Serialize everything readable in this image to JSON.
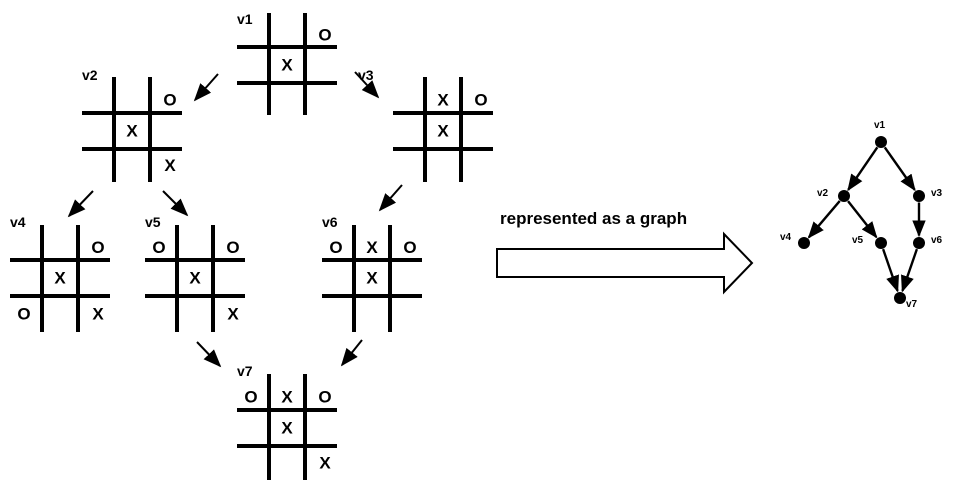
{
  "caption": "represented as a graph",
  "boards": [
    {
      "id": "v1",
      "label": "v1",
      "cells": [
        "",
        "",
        "O",
        "",
        "X",
        "",
        "",
        "",
        ""
      ]
    },
    {
      "id": "v2",
      "label": "v2",
      "cells": [
        "",
        "",
        "O",
        "",
        "X",
        "",
        "",
        "",
        "X"
      ]
    },
    {
      "id": "v3",
      "label": "v3",
      "cells": [
        "",
        "X",
        "O",
        "",
        "X",
        "",
        "",
        "",
        ""
      ]
    },
    {
      "id": "v4",
      "label": "v4",
      "cells": [
        "",
        "",
        "O",
        "",
        "X",
        "",
        "O",
        "",
        "X"
      ]
    },
    {
      "id": "v5",
      "label": "v5",
      "cells": [
        "O",
        "",
        "O",
        "",
        "X",
        "",
        "",
        "",
        "X"
      ]
    },
    {
      "id": "v6",
      "label": "v6",
      "cells": [
        "O",
        "X",
        "O",
        "",
        "X",
        "",
        "",
        "",
        ""
      ]
    },
    {
      "id": "v7",
      "label": "v7",
      "cells": [
        "O",
        "X",
        "O",
        "",
        "X",
        "",
        "",
        "",
        "X"
      ]
    }
  ],
  "graph": {
    "nodes": [
      {
        "id": "v1",
        "label": "v1"
      },
      {
        "id": "v2",
        "label": "v2"
      },
      {
        "id": "v3",
        "label": "v3"
      },
      {
        "id": "v4",
        "label": "v4"
      },
      {
        "id": "v5",
        "label": "v5"
      },
      {
        "id": "v6",
        "label": "v6"
      },
      {
        "id": "v7",
        "label": "v7"
      }
    ],
    "edges": [
      {
        "from": "v1",
        "to": "v2"
      },
      {
        "from": "v1",
        "to": "v3"
      },
      {
        "from": "v2",
        "to": "v4"
      },
      {
        "from": "v2",
        "to": "v5"
      },
      {
        "from": "v3",
        "to": "v6"
      },
      {
        "from": "v5",
        "to": "v7"
      },
      {
        "from": "v6",
        "to": "v7"
      }
    ]
  },
  "board_arrows": [
    {
      "from": "v1",
      "to": "v2"
    },
    {
      "from": "v1",
      "to": "v3"
    },
    {
      "from": "v2",
      "to": "v4"
    },
    {
      "from": "v2",
      "to": "v5"
    },
    {
      "from": "v3",
      "to": "v6"
    },
    {
      "from": "v5",
      "to": "v7"
    },
    {
      "from": "v6",
      "to": "v7"
    }
  ]
}
